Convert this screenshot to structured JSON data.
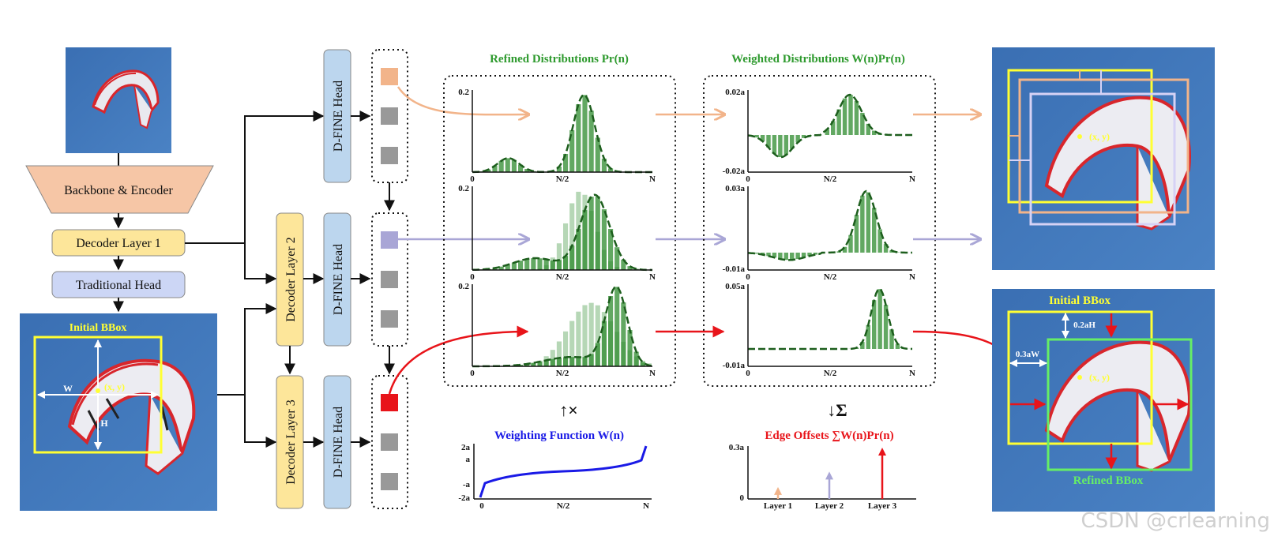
{
  "pipeline": {
    "backbone": "Backbone & Encoder",
    "decoder1": "Decoder Layer 1",
    "traditional_head": "Traditional Head",
    "decoder2": "Decoder Layer 2",
    "decoder3": "Decoder Layer 3",
    "dfine_head": "D-FINE Head",
    "initial_bbox_label": "Initial BBox",
    "w_label": "W",
    "h_label": "H",
    "center_label": "(x, y)"
  },
  "panels": {
    "refined_title": "Refined Distributions Pr(n)",
    "weighted_title": "Weighted Distributions W(n)Pr(n)",
    "x_tick_start": "0",
    "x_tick_mid": "N/2",
    "x_tick_end": "N",
    "refined_ymax": [
      "0.2",
      "0.2",
      "0.2"
    ],
    "weighted_ymax": [
      "0.02a",
      "0.03a",
      "0.05a"
    ],
    "weighted_ymin": [
      "-0.02a",
      "-0.01a",
      "-0.01a"
    ]
  },
  "weighting": {
    "title": "Weighting Function W(n)",
    "op": "↑×",
    "y_ticks": [
      "2a",
      "a",
      "-a",
      "-2a"
    ],
    "x_ticks": [
      "0",
      "N/2",
      "N"
    ]
  },
  "offsets": {
    "title": "Edge Offsets ∑W(n)Pr(n)",
    "op": "↓Σ",
    "y_top": "0.3a",
    "y_zero": "0",
    "categories": [
      "Layer 1",
      "Layer 2",
      "Layer 3"
    ],
    "values": [
      0.07,
      0.16,
      0.3
    ]
  },
  "result": {
    "initial_bbox_label": "Initial BBox",
    "refined_bbox_label": "Refined BBox",
    "center_label": "(x, y)",
    "top_offset_label": "0.2aH",
    "left_offset_label": "0.3aW"
  },
  "colors": {
    "orange": "#f2b48a",
    "purple": "#a9a6d6",
    "red": "#e8141a",
    "green": "#2e8b2e",
    "blue_fn": "#1a1ae6",
    "bbox_yellow": "#ffff33",
    "bbox_green": "#66ee66",
    "decoder_fill": "#fde69a",
    "head_fill": "#bcd6ee",
    "trad_fill": "#ccd6f5",
    "backbone_fill": "#f6c6a6",
    "sky": "#3d74b8"
  },
  "watermark": "CSDN @crlearning"
}
